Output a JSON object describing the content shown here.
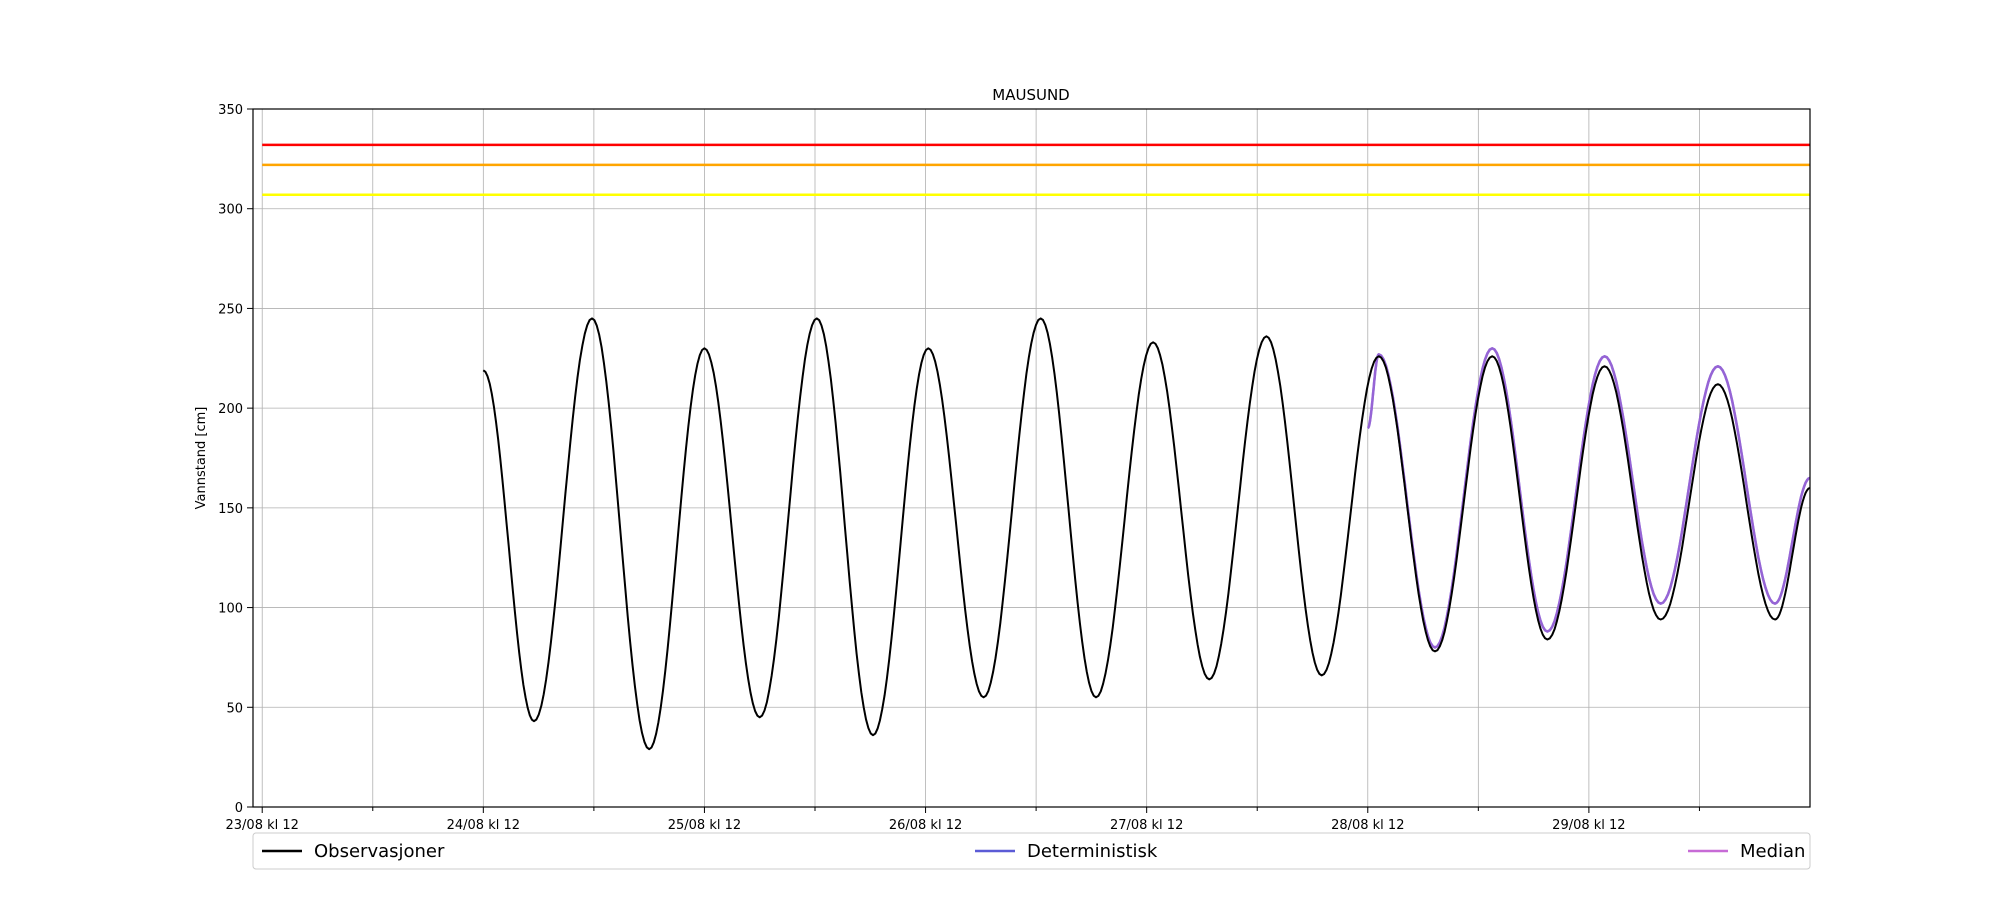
{
  "chart_data": {
    "type": "line",
    "title": "MAUSUND",
    "xlabel": "",
    "ylabel": "Vannstand [cm]",
    "ylim": [
      0,
      350
    ],
    "xlim_hours": [
      -1,
      168
    ],
    "yticks": [
      0,
      50,
      100,
      150,
      200,
      250,
      300,
      350
    ],
    "xticks": [
      {
        "t": 0,
        "label": "23/08 kl 12"
      },
      {
        "t": 24,
        "label": "24/08 kl 12"
      },
      {
        "t": 48,
        "label": "25/08 kl 12"
      },
      {
        "t": 72,
        "label": "26/08 kl 12"
      },
      {
        "t": 96,
        "label": "27/08 kl 12"
      },
      {
        "t": 120,
        "label": "28/08 kl 12"
      },
      {
        "t": 144,
        "label": "29/08 kl 12"
      }
    ],
    "minor_xticks": [
      12,
      36,
      60,
      84,
      108,
      132,
      156
    ],
    "grid": true,
    "legend_position": "bottom",
    "thresholds": [
      {
        "value": 332,
        "color": "#ff0000"
      },
      {
        "value": 322,
        "color": "#ffa500"
      },
      {
        "value": 307,
        "color": "#ffff00"
      }
    ],
    "series": [
      {
        "name": "Observasjoner",
        "color": "#000000",
        "points": [
          [
            24,
            219
          ],
          [
            29.5,
            43
          ],
          [
            35.8,
            245
          ],
          [
            42,
            29
          ],
          [
            48,
            230
          ],
          [
            54,
            45
          ],
          [
            60.2,
            245
          ],
          [
            66.3,
            36
          ],
          [
            72.3,
            230
          ],
          [
            78.3,
            55
          ],
          [
            84.5,
            245
          ],
          [
            90.5,
            55
          ],
          [
            96.7,
            233
          ],
          [
            102.8,
            64
          ],
          [
            109,
            236
          ],
          [
            115,
            66
          ],
          [
            121.2,
            226
          ],
          [
            127.3,
            78
          ],
          [
            133.5,
            226
          ],
          [
            139.5,
            84
          ],
          [
            145.7,
            221
          ],
          [
            151.8,
            94
          ],
          [
            158,
            212
          ],
          [
            164.2,
            94
          ],
          [
            168,
            160
          ]
        ]
      },
      {
        "name": "Deterministisk",
        "color": "#5b5bd6",
        "points": [
          [
            120,
            190
          ],
          [
            121.2,
            227
          ],
          [
            127.3,
            80
          ],
          [
            133.5,
            230
          ],
          [
            139.5,
            88
          ],
          [
            145.7,
            226
          ],
          [
            151.8,
            102
          ],
          [
            158,
            221
          ],
          [
            164.2,
            102
          ],
          [
            168,
            165
          ]
        ]
      },
      {
        "name": "Median",
        "color": "#c76bd6",
        "points": [
          [
            120,
            190
          ],
          [
            121.2,
            227
          ],
          [
            127.3,
            80
          ],
          [
            133.5,
            230
          ],
          [
            139.5,
            88
          ],
          [
            145.7,
            226
          ],
          [
            151.8,
            102
          ],
          [
            158,
            221
          ],
          [
            164.2,
            102
          ],
          [
            168,
            165
          ]
        ]
      }
    ]
  }
}
